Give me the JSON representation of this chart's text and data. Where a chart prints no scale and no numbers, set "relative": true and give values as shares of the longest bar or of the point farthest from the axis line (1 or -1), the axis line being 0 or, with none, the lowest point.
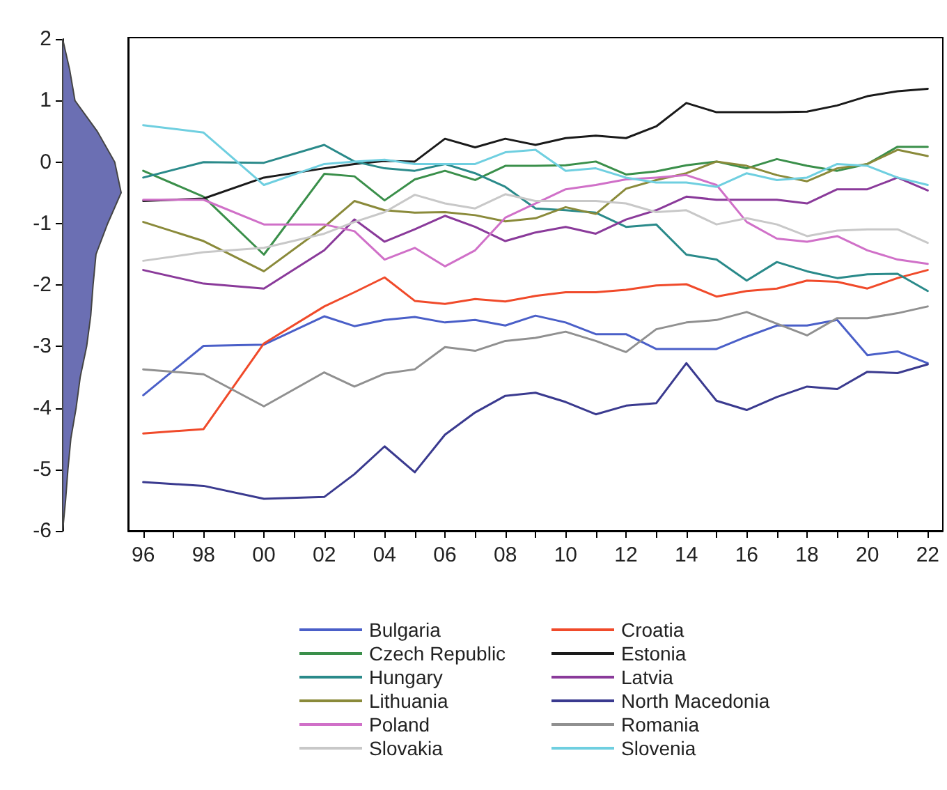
{
  "chart_data": [
    {
      "type": "area",
      "orientation": "horizontal",
      "relative": true,
      "color": "#6b6fb3",
      "x": [
        2,
        1.5,
        1,
        0.5,
        0,
        -0.5,
        -1,
        -1.5,
        -2,
        -2.5,
        -3,
        -3.5,
        -4,
        -4.5,
        -5,
        -5.5,
        -6
      ],
      "values": [
        0,
        0.12,
        0.21,
        0.59,
        0.89,
        1,
        0.77,
        0.57,
        0.52,
        0.48,
        0.41,
        0.3,
        0.23,
        0.14,
        0.09,
        0.05,
        0
      ],
      "ylim": [
        -6,
        2
      ],
      "yticks": [
        -6,
        -5,
        -4,
        -3,
        -2,
        -1,
        0,
        1,
        2
      ],
      "tick_labels": "y"
    },
    {
      "type": "line",
      "legend": "bottom",
      "tick_labels": "x",
      "x": [
        1996,
        1998,
        2000,
        2002,
        2003,
        2004,
        2005,
        2006,
        2007,
        2008,
        2009,
        2010,
        2011,
        2012,
        2013,
        2014,
        2015,
        2016,
        2017,
        2018,
        2019,
        2020,
        2021,
        2022
      ],
      "xlim": [
        1995.5,
        2022.5
      ],
      "xticks": [
        {
          "value": 1996,
          "label": "96"
        },
        {
          "value": 1997,
          "label": null
        },
        {
          "value": 1998,
          "label": "98"
        },
        {
          "value": 1999,
          "label": null
        },
        {
          "value": 2000,
          "label": "00"
        },
        {
          "value": 2001,
          "label": null
        },
        {
          "value": 2002,
          "label": "02"
        },
        {
          "value": 2003,
          "label": null
        },
        {
          "value": 2004,
          "label": "04"
        },
        {
          "value": 2005,
          "label": null
        },
        {
          "value": 2006,
          "label": "06"
        },
        {
          "value": 2007,
          "label": null
        },
        {
          "value": 2008,
          "label": "08"
        },
        {
          "value": 2009,
          "label": null
        },
        {
          "value": 2010,
          "label": "10"
        },
        {
          "value": 2011,
          "label": null
        },
        {
          "value": 2012,
          "label": "12"
        },
        {
          "value": 2013,
          "label": null
        },
        {
          "value": 2014,
          "label": "14"
        },
        {
          "value": 2015,
          "label": null
        },
        {
          "value": 2016,
          "label": "16"
        },
        {
          "value": 2017,
          "label": null
        },
        {
          "value": 2018,
          "label": "18"
        },
        {
          "value": 2019,
          "label": null
        },
        {
          "value": 2020,
          "label": "20"
        },
        {
          "value": 2021,
          "label": null
        },
        {
          "value": 2022,
          "label": "22"
        }
      ],
      "ylim": [
        -6,
        2
      ],
      "yticks": [
        -6,
        -5,
        -4,
        -3,
        -2,
        -1,
        0,
        1,
        2
      ],
      "series": [
        {
          "name": "Bulgaria",
          "color": "#4a5fc8",
          "values": [
            -3.8,
            -3.0,
            -2.98,
            -2.52,
            -2.68,
            -2.58,
            -2.53,
            -2.62,
            -2.58,
            -2.67,
            -2.51,
            -2.62,
            -2.81,
            -2.81,
            -3.05,
            -3.05,
            -3.05,
            -2.85,
            -2.67,
            -2.67,
            -2.58,
            -3.15,
            -3.09,
            -3.28
          ]
        },
        {
          "name": "Croatia",
          "color": "#f04a2a",
          "values": [
            -4.42,
            -4.35,
            -2.96,
            -2.36,
            -2.13,
            -1.89,
            -2.27,
            -2.32,
            -2.24,
            -2.28,
            -2.19,
            -2.13,
            -2.13,
            -2.09,
            -2.02,
            -2.0,
            -2.2,
            -2.11,
            -2.07,
            -1.94,
            -1.96,
            -2.07,
            -1.9,
            -1.77
          ]
        },
        {
          "name": "Czech Republic",
          "color": "#3a8f4a",
          "values": [
            -0.16,
            -0.58,
            -1.52,
            -0.21,
            -0.25,
            -0.64,
            -0.3,
            -0.16,
            -0.31,
            -0.08,
            -0.08,
            -0.07,
            -0.01,
            -0.22,
            -0.17,
            -0.07,
            -0.01,
            -0.12,
            0.03,
            -0.08,
            -0.16,
            -0.05,
            0.23,
            0.23
          ]
        },
        {
          "name": "Estonia",
          "color": "#1a1a1a",
          "values": [
            -0.65,
            -0.61,
            -0.27,
            -0.12,
            -0.05,
            0.0,
            -0.01,
            0.36,
            0.22,
            0.36,
            0.26,
            0.37,
            0.41,
            0.37,
            0.56,
            0.94,
            0.79,
            0.79,
            0.79,
            0.8,
            0.9,
            1.05,
            1.13,
            1.17
          ]
        },
        {
          "name": "Hungary",
          "color": "#2a8a8a",
          "values": [
            -0.27,
            -0.02,
            -0.03,
            0.26,
            -0.01,
            -0.12,
            -0.16,
            -0.05,
            -0.2,
            -0.42,
            -0.77,
            -0.8,
            -0.84,
            -1.07,
            -1.03,
            -1.52,
            -1.6,
            -1.94,
            -1.64,
            -1.79,
            -1.9,
            -1.84,
            -1.83,
            -2.11
          ]
        },
        {
          "name": "Latvia",
          "color": "#8a3a9a",
          "values": [
            -1.77,
            -1.99,
            -2.07,
            -1.45,
            -0.95,
            -1.31,
            -1.11,
            -0.89,
            -1.07,
            -1.3,
            -1.16,
            -1.07,
            -1.18,
            -0.95,
            -0.8,
            -0.58,
            -0.63,
            -0.63,
            -0.63,
            -0.69,
            -0.46,
            -0.46,
            -0.27,
            -0.48
          ]
        },
        {
          "name": "Lithuania",
          "color": "#8a8a3a",
          "values": [
            -0.99,
            -1.3,
            -1.79,
            -1.07,
            -0.65,
            -0.8,
            -0.84,
            -0.83,
            -0.88,
            -0.98,
            -0.93,
            -0.75,
            -0.86,
            -0.45,
            -0.31,
            -0.2,
            -0.01,
            -0.08,
            -0.23,
            -0.33,
            -0.12,
            -0.05,
            0.18,
            0.08
          ]
        },
        {
          "name": "North Macedonia",
          "color": "#3a3a8f",
          "values": [
            -5.21,
            -5.27,
            -5.48,
            -5.45,
            -5.08,
            -4.63,
            -5.05,
            -4.44,
            -4.08,
            -3.81,
            -3.76,
            -3.91,
            -4.11,
            -3.97,
            -3.93,
            -3.28,
            -3.89,
            -4.04,
            -3.83,
            -3.66,
            -3.7,
            -3.42,
            -3.44,
            -3.3
          ]
        },
        {
          "name": "Poland",
          "color": "#d070c8",
          "values": [
            -0.63,
            -0.63,
            -1.03,
            -1.03,
            -1.14,
            -1.6,
            -1.41,
            -1.71,
            -1.45,
            -0.92,
            -0.69,
            -0.46,
            -0.39,
            -0.3,
            -0.27,
            -0.23,
            -0.39,
            -0.99,
            -1.26,
            -1.31,
            -1.22,
            -1.45,
            -1.6,
            -1.67
          ]
        },
        {
          "name": "Romania",
          "color": "#909090",
          "values": [
            -3.38,
            -3.46,
            -3.98,
            -3.43,
            -3.66,
            -3.45,
            -3.38,
            -3.02,
            -3.08,
            -2.92,
            -2.87,
            -2.77,
            -2.92,
            -3.1,
            -2.73,
            -2.62,
            -2.58,
            -2.45,
            -2.64,
            -2.83,
            -2.55,
            -2.55,
            -2.47,
            -2.36
          ]
        },
        {
          "name": "Slovakia",
          "color": "#c8c8c8",
          "values": [
            -1.62,
            -1.48,
            -1.41,
            -1.18,
            -0.99,
            -0.83,
            -0.55,
            -0.69,
            -0.77,
            -0.54,
            -0.65,
            -0.65,
            -0.65,
            -0.69,
            -0.83,
            -0.8,
            -1.03,
            -0.93,
            -1.03,
            -1.22,
            -1.13,
            -1.11,
            -1.11,
            -1.33
          ]
        },
        {
          "name": "Slovenia",
          "color": "#6fcfe0",
          "values": [
            0.58,
            0.46,
            -0.39,
            -0.05,
            -0.01,
            0.02,
            -0.05,
            -0.05,
            -0.05,
            0.14,
            0.18,
            -0.16,
            -0.12,
            -0.27,
            -0.35,
            -0.35,
            -0.42,
            -0.2,
            -0.31,
            -0.27,
            -0.05,
            -0.08,
            -0.27,
            -0.39
          ]
        }
      ]
    }
  ]
}
